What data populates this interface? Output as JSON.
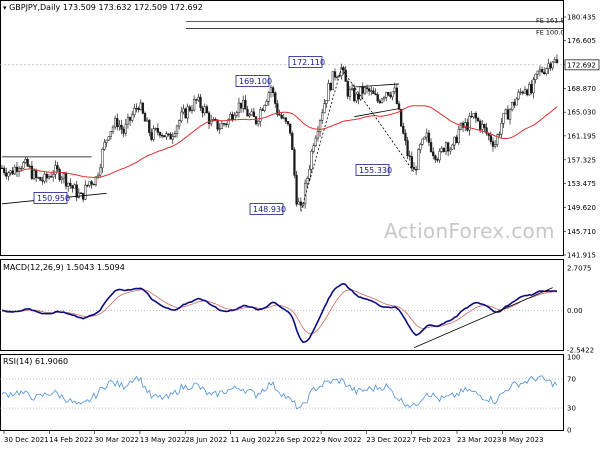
{
  "chart_data": [
    {
      "type": "candlestick",
      "title": "GBPJPY,Daily",
      "ohlc": {
        "open": "173.509",
        "high": "173.632",
        "low": "172.509",
        "close": "172.692"
      },
      "ylim": [
        141.915,
        180.435
      ],
      "y_ticks": [
        "180.435",
        "176.605",
        "172.692",
        "168.870",
        "165.030",
        "161.195",
        "157.325",
        "153.475",
        "149.620",
        "145.710",
        "141.915"
      ],
      "current_price": "172.692",
      "annotations": [
        "172.110",
        "169.100",
        "155.330",
        "150.950",
        "148.930"
      ],
      "fe_levels": [
        "FE 161.8",
        "FE 100.0"
      ],
      "moving_average": "red",
      "price_path": [
        {
          "t": 0,
          "p": 156.0
        },
        {
          "t": 4,
          "p": 155.2
        },
        {
          "t": 8,
          "p": 156.8
        },
        {
          "t": 12,
          "p": 156.2
        },
        {
          "t": 16,
          "p": 154.2
        },
        {
          "t": 20,
          "p": 154.0
        },
        {
          "t": 24,
          "p": 155.5
        },
        {
          "t": 28,
          "p": 155.0
        },
        {
          "t": 33,
          "p": 152.8
        },
        {
          "t": 37,
          "p": 151.2
        },
        {
          "t": 41,
          "p": 153.8
        },
        {
          "t": 44,
          "p": 154.3
        },
        {
          "t": 47,
          "p": 158.5
        },
        {
          "t": 50,
          "p": 162.0
        },
        {
          "t": 54,
          "p": 163.5
        },
        {
          "t": 57,
          "p": 161.8
        },
        {
          "t": 61,
          "p": 164.5
        },
        {
          "t": 64,
          "p": 166.4
        },
        {
          "t": 67,
          "p": 163.5
        },
        {
          "t": 70,
          "p": 161.2
        },
        {
          "t": 74,
          "p": 162.2
        },
        {
          "t": 78,
          "p": 160.6
        },
        {
          "t": 81,
          "p": 162.6
        },
        {
          "t": 84,
          "p": 164.2
        },
        {
          "t": 88,
          "p": 165.8
        },
        {
          "t": 91,
          "p": 166.8
        },
        {
          "t": 95,
          "p": 165.4
        },
        {
          "t": 98,
          "p": 163.2
        },
        {
          "t": 102,
          "p": 162.7
        },
        {
          "t": 106,
          "p": 163.7
        },
        {
          "t": 109,
          "p": 165.6
        },
        {
          "t": 112,
          "p": 166.4
        },
        {
          "t": 116,
          "p": 164.3
        },
        {
          "t": 119,
          "p": 163.7
        },
        {
          "t": 122,
          "p": 166.2
        },
        {
          "t": 126,
          "p": 169.1
        },
        {
          "t": 129,
          "p": 165.2
        },
        {
          "t": 132,
          "p": 163.5
        },
        {
          "t": 135,
          "p": 162.1
        },
        {
          "t": 138,
          "p": 151.2
        },
        {
          "t": 140,
          "p": 148.93
        },
        {
          "t": 143,
          "p": 154.5
        },
        {
          "t": 146,
          "p": 160.5
        },
        {
          "t": 150,
          "p": 165.5
        },
        {
          "t": 153,
          "p": 168.9
        },
        {
          "t": 156,
          "p": 171.3
        },
        {
          "t": 159,
          "p": 172.11
        },
        {
          "t": 162,
          "p": 168.4
        },
        {
          "t": 166,
          "p": 167.3
        },
        {
          "t": 169,
          "p": 168.5
        },
        {
          "t": 172,
          "p": 168.3
        },
        {
          "t": 176,
          "p": 166.9
        },
        {
          "t": 180,
          "p": 168.6
        },
        {
          "t": 184,
          "p": 168.2
        },
        {
          "t": 187,
          "p": 162.8
        },
        {
          "t": 190,
          "p": 158.3
        },
        {
          "t": 193,
          "p": 155.33
        },
        {
          "t": 196,
          "p": 159.2
        },
        {
          "t": 199,
          "p": 160.9
        },
        {
          "t": 202,
          "p": 158.8
        },
        {
          "t": 205,
          "p": 157.8
        },
        {
          "t": 208,
          "p": 160.3
        },
        {
          "t": 211,
          "p": 158.9
        },
        {
          "t": 214,
          "p": 162.1
        },
        {
          "t": 218,
          "p": 163.0
        },
        {
          "t": 221,
          "p": 164.3
        },
        {
          "t": 225,
          "p": 162.6
        },
        {
          "t": 228,
          "p": 161.1
        },
        {
          "t": 231,
          "p": 160.0
        },
        {
          "t": 234,
          "p": 163.3
        },
        {
          "t": 238,
          "p": 165.5
        },
        {
          "t": 241,
          "p": 167.2
        },
        {
          "t": 245,
          "p": 169.2
        },
        {
          "t": 248,
          "p": 168.2
        },
        {
          "t": 251,
          "p": 171.3
        },
        {
          "t": 255,
          "p": 172.4
        },
        {
          "t": 258,
          "p": 173.7
        },
        {
          "t": 260,
          "p": 172.69
        }
      ]
    },
    {
      "type": "line",
      "title": "MACD(12,26,9) 1.5043 1.5094",
      "ylim": [
        -2.5422,
        2.7075
      ],
      "y_ticks": [
        "2.7075",
        "0.00",
        "-2.5422"
      ]
    },
    {
      "type": "line",
      "title": "RSI(14) 61.9060",
      "ylim": [
        0,
        100
      ],
      "y_ticks": [
        "100",
        "70",
        "30",
        "0"
      ],
      "rsi_levels": [
        70,
        30
      ],
      "rsi_path": [
        {
          "t": 0,
          "v": 48
        },
        {
          "t": 8,
          "v": 52
        },
        {
          "t": 16,
          "v": 44
        },
        {
          "t": 24,
          "v": 52
        },
        {
          "t": 33,
          "v": 38
        },
        {
          "t": 37,
          "v": 32
        },
        {
          "t": 44,
          "v": 48
        },
        {
          "t": 50,
          "v": 66
        },
        {
          "t": 57,
          "v": 60
        },
        {
          "t": 61,
          "v": 70
        },
        {
          "t": 64,
          "v": 72
        },
        {
          "t": 70,
          "v": 45
        },
        {
          "t": 78,
          "v": 44
        },
        {
          "t": 84,
          "v": 58
        },
        {
          "t": 91,
          "v": 62
        },
        {
          "t": 98,
          "v": 46
        },
        {
          "t": 106,
          "v": 55
        },
        {
          "t": 112,
          "v": 58
        },
        {
          "t": 119,
          "v": 48
        },
        {
          "t": 126,
          "v": 64
        },
        {
          "t": 132,
          "v": 48
        },
        {
          "t": 140,
          "v": 28
        },
        {
          "t": 146,
          "v": 56
        },
        {
          "t": 153,
          "v": 66
        },
        {
          "t": 159,
          "v": 68
        },
        {
          "t": 166,
          "v": 52
        },
        {
          "t": 172,
          "v": 56
        },
        {
          "t": 180,
          "v": 60
        },
        {
          "t": 187,
          "v": 40
        },
        {
          "t": 193,
          "v": 32
        },
        {
          "t": 199,
          "v": 52
        },
        {
          "t": 205,
          "v": 42
        },
        {
          "t": 211,
          "v": 46
        },
        {
          "t": 218,
          "v": 55
        },
        {
          "t": 225,
          "v": 46
        },
        {
          "t": 231,
          "v": 40
        },
        {
          "t": 238,
          "v": 60
        },
        {
          "t": 245,
          "v": 66
        },
        {
          "t": 251,
          "v": 72
        },
        {
          "t": 258,
          "v": 64
        },
        {
          "t": 260,
          "v": 62
        }
      ]
    }
  ],
  "x_axis_labels": [
    "30 Dec 2021",
    "14 Feb 2022",
    "30 Mar 2022",
    "13 May 2022",
    "28 Jun 2022",
    "11 Aug 2022",
    "26 Sep 2022",
    "9 Nov 2022",
    "23 Dec 2022",
    "7 Feb 2023",
    "23 Mar 2023",
    "8 May 2023"
  ],
  "watermark": "ActionForex.com",
  "colors": {
    "candle": "#1a1a1a",
    "ma": "#e03030",
    "macd": "#0b0b80",
    "signal": "#cc6666",
    "rsi": "#4a90d9",
    "label_border": "#1a1a90",
    "price_box": "#ffffff"
  }
}
